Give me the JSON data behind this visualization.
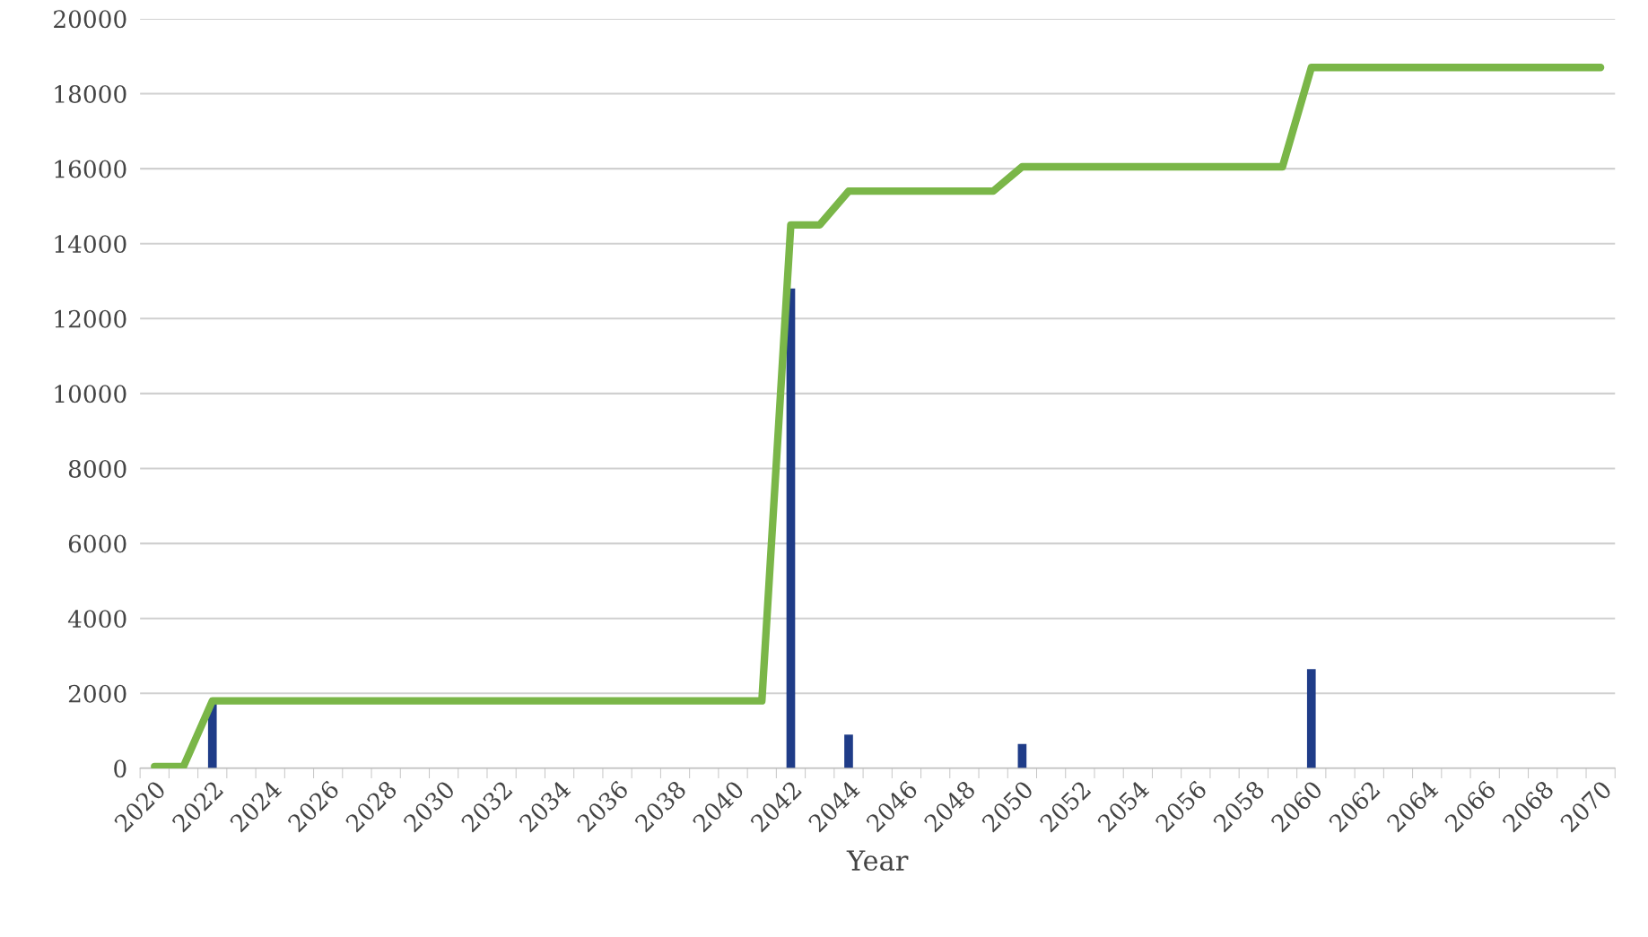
{
  "chart_data": {
    "type": "bar",
    "xlabel": "Year",
    "categories": [
      "2020",
      null,
      "2022",
      null,
      "2024",
      null,
      "2026",
      null,
      "2028",
      null,
      "2030",
      null,
      "2032",
      null,
      "2034",
      null,
      "2036",
      null,
      "2038",
      null,
      "2040",
      null,
      "2042",
      null,
      "2044",
      null,
      "2046",
      null,
      "2048",
      null,
      "2050",
      null,
      "2052",
      null,
      "2054",
      null,
      "2056",
      null,
      "2058",
      null,
      "2060",
      null,
      "2062",
      null,
      "2064",
      null,
      "2066",
      null,
      "2068",
      null,
      "2070"
    ],
    "series": [
      {
        "color": "#1f3c88",
        "values": [
          null,
          null,
          1750,
          null,
          null,
          null,
          null,
          null,
          null,
          null,
          null,
          null,
          null,
          null,
          null,
          null,
          null,
          null,
          null,
          null,
          null,
          null,
          12800,
          null,
          900,
          null,
          null,
          null,
          null,
          null,
          650,
          null,
          null,
          null,
          null,
          null,
          null,
          null,
          null,
          null,
          2650,
          null,
          null,
          null,
          null,
          null,
          null,
          null,
          null,
          null,
          null
        ]
      },
      {
        "type": "line",
        "color": "#7ab648",
        "values": [
          50,
          50,
          1800,
          1800,
          1800,
          1800,
          1800,
          1800,
          1800,
          1800,
          1800,
          1800,
          1800,
          1800,
          1800,
          1800,
          1800,
          1800,
          1800,
          1800,
          1800,
          1800,
          14500,
          14500,
          15400,
          15400,
          15400,
          15400,
          15400,
          15400,
          16050,
          16050,
          16050,
          16050,
          16050,
          16050,
          16050,
          16050,
          16050,
          16050,
          18700,
          18700,
          18700,
          18700,
          18700,
          18700,
          18700,
          18700,
          18700,
          18700,
          18700
        ]
      }
    ],
    "ylim": [
      0,
      20000
    ],
    "yticks": [
      0,
      2000,
      4000,
      6000,
      8000,
      10000,
      12000,
      14000,
      16000,
      18000,
      20000
    ],
    "grid": "y",
    "legend": false
  }
}
